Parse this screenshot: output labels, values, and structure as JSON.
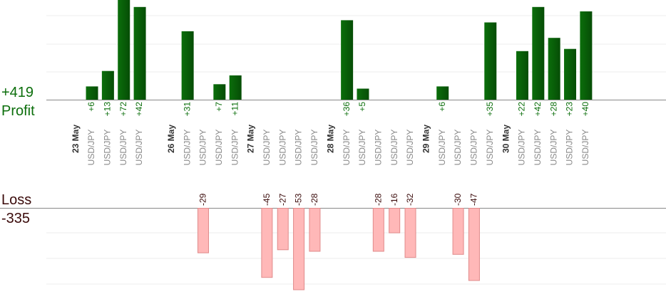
{
  "labels": {
    "profit_title": "Profit",
    "profit_total": "+419",
    "loss_title": "Loss",
    "loss_total": "-335"
  },
  "colors": {
    "profit_bar": "#0b6e0b",
    "profit_bar_dark": "#064d06",
    "profit_text": "#0b6e0b",
    "loss_bar": "#ffb8b8",
    "loss_bar_edge": "#e08a8a",
    "loss_text": "#3a0a0a",
    "date_text": "#333333",
    "pair_text": "#888888",
    "grid": "#eeeeee",
    "axis": "#888888"
  },
  "chart_data": {
    "type": "bar",
    "y_profit_range": [
      0,
      42
    ],
    "y_loss_range": [
      0,
      -45
    ],
    "grid": true,
    "dates": [
      {
        "label": "23 May",
        "slot": 0
      },
      {
        "label": "26 May",
        "slot": 6
      },
      {
        "label": "27 May",
        "slot": 11
      },
      {
        "label": "28 May",
        "slot": 16
      },
      {
        "label": "29 May",
        "slot": 22
      },
      {
        "label": "30 May",
        "slot": 27
      }
    ],
    "trades": [
      {
        "slot": 1,
        "pair": "USD/JPY",
        "profit": 6
      },
      {
        "slot": 2,
        "pair": "USD/JPY",
        "profit": 13
      },
      {
        "slot": 3,
        "pair": "USD/JPY",
        "profit": 72
      },
      {
        "slot": 4,
        "pair": "USD/JPY",
        "profit": 42
      },
      {
        "slot": 7,
        "pair": "USD/JPY",
        "profit": 31
      },
      {
        "slot": 8,
        "pair": "USD/JPY",
        "loss": -29
      },
      {
        "slot": 9,
        "pair": "USD/JPY",
        "profit": 7
      },
      {
        "slot": 10,
        "pair": "USD/JPY",
        "profit": 11
      },
      {
        "slot": 12,
        "pair": "USD/JPY",
        "loss": -45
      },
      {
        "slot": 13,
        "pair": "USD/JPY",
        "loss": -27
      },
      {
        "slot": 14,
        "pair": "USD/JPY",
        "loss": -53
      },
      {
        "slot": 15,
        "pair": "USD/JPY",
        "loss": -28
      },
      {
        "slot": 17,
        "pair": "USD/JPY",
        "profit": 36
      },
      {
        "slot": 18,
        "pair": "USD/JPY",
        "profit": 5
      },
      {
        "slot": 19,
        "pair": "USD/JPY",
        "loss": -28
      },
      {
        "slot": 20,
        "pair": "USD/JPY",
        "loss": -16
      },
      {
        "slot": 21,
        "pair": "USD/JPY",
        "loss": -32
      },
      {
        "slot": 23,
        "pair": "USD/JPY",
        "profit": 6
      },
      {
        "slot": 24,
        "pair": "USD/JPY",
        "loss": -30
      },
      {
        "slot": 25,
        "pair": "USD/JPY",
        "loss": -47
      },
      {
        "slot": 26,
        "pair": "USD/JPY",
        "profit": 35
      },
      {
        "slot": 28,
        "pair": "USD/JPY",
        "profit": 22
      },
      {
        "slot": 29,
        "pair": "USD/JPY",
        "profit": 42
      },
      {
        "slot": 30,
        "pair": "USD/JPY",
        "profit": 28
      },
      {
        "slot": 31,
        "pair": "USD/JPY",
        "profit": 23
      },
      {
        "slot": 32,
        "pair": "USD/JPY",
        "profit": 40
      }
    ]
  }
}
